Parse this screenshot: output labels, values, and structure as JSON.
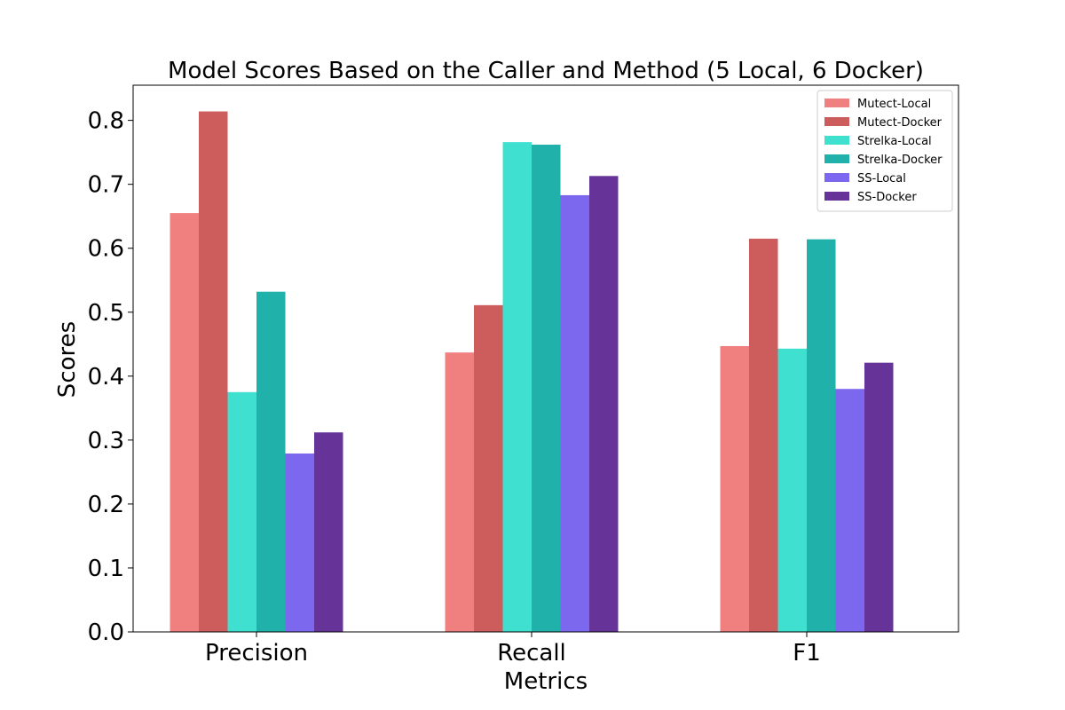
{
  "chart_data": {
    "type": "bar",
    "title": "Model Scores Based on the Caller and Method (5 Local, 6 Docker)",
    "xlabel": "Metrics",
    "ylabel": "Scores",
    "categories": [
      "Precision",
      "Recall",
      "F1"
    ],
    "ylim": [
      0,
      0.855
    ],
    "yticks": [
      "0.0",
      "0.1",
      "0.2",
      "0.3",
      "0.4",
      "0.5",
      "0.6",
      "0.7",
      "0.8"
    ],
    "grid": false,
    "legend_position": "top-right",
    "series": [
      {
        "name": "Mutect-Local",
        "color": "#f08080",
        "values": [
          0.655,
          0.437,
          0.447
        ]
      },
      {
        "name": "Mutect-Docker",
        "color": "#cd5c5c",
        "values": [
          0.814,
          0.511,
          0.615
        ]
      },
      {
        "name": "Strelka-Local",
        "color": "#40e0d0",
        "values": [
          0.375,
          0.766,
          0.443
        ]
      },
      {
        "name": "Strelka-Docker",
        "color": "#20b2aa",
        "values": [
          0.532,
          0.762,
          0.614
        ]
      },
      {
        "name": "SS-Local",
        "color": "#7b68ee",
        "values": [
          0.279,
          0.683,
          0.38
        ]
      },
      {
        "name": "SS-Docker",
        "color": "#663399",
        "values": [
          0.312,
          0.713,
          0.421
        ]
      }
    ]
  }
}
